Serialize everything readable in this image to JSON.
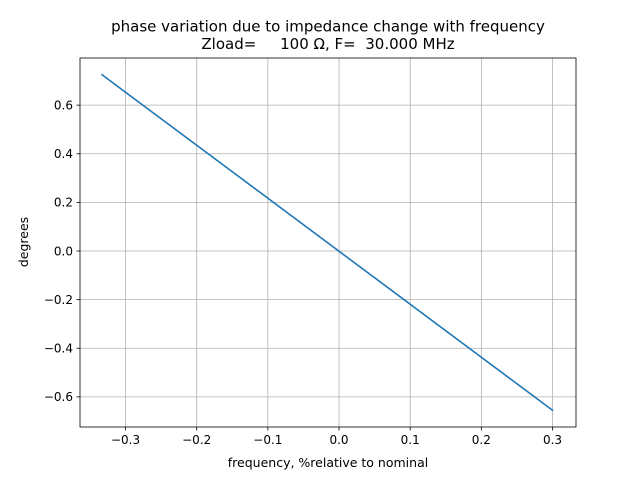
{
  "chart_data": {
    "type": "line",
    "title": "phase variation due to impedance change with frequency",
    "subtitle": "Zload=     100 Ω, F=  30.000 MHz",
    "xlabel": "frequency, %relative to nominal",
    "ylabel": "degrees",
    "xlim": [
      -0.364,
      0.333
    ],
    "ylim": [
      -0.724,
      0.794
    ],
    "grid": true,
    "x_ticks": [
      -0.3,
      -0.2,
      -0.1,
      0.0,
      0.1,
      0.2,
      0.3
    ],
    "x_tick_labels": [
      "−0.3",
      "−0.2",
      "−0.1",
      "0.0",
      "0.1",
      "0.2",
      "0.3"
    ],
    "y_ticks": [
      -0.6,
      -0.4,
      -0.2,
      0.0,
      0.2,
      0.4,
      0.6
    ],
    "y_tick_labels": [
      "−0.6",
      "−0.4",
      "−0.2",
      "0.0",
      "0.2",
      "0.4",
      "0.6"
    ],
    "series": [
      {
        "color": "#1f77b4",
        "x": [
          -0.333,
          0.3
        ],
        "y": [
          0.725,
          -0.655
        ]
      }
    ]
  }
}
